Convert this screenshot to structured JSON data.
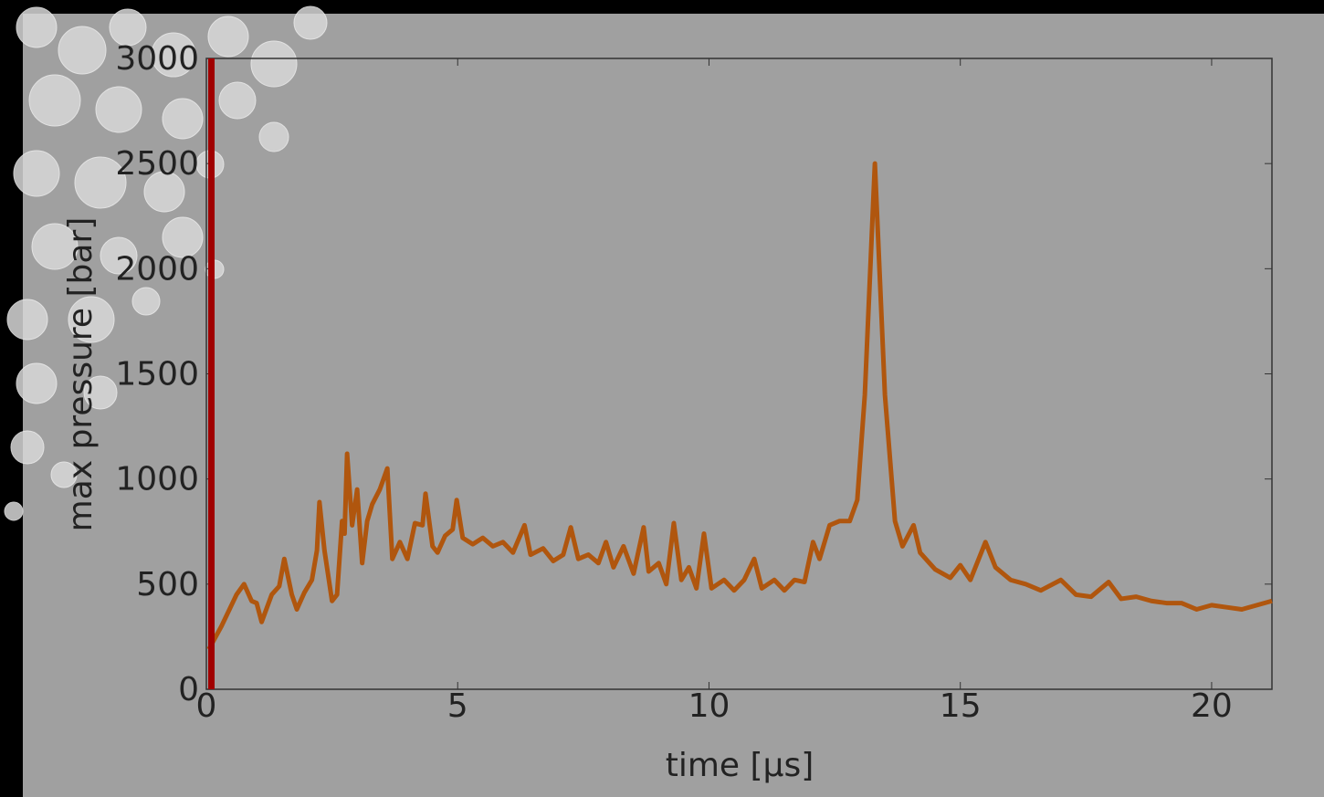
{
  "chart_data": {
    "type": "line",
    "xlabel": "time [μs]",
    "ylabel": "max pressure [bar]",
    "xlim": [
      0,
      21.2
    ],
    "ylim": [
      0,
      3000
    ],
    "xticks": [
      0,
      5,
      10,
      15,
      20
    ],
    "yticks": [
      0,
      500,
      1000,
      1500,
      2000,
      2500,
      3000
    ],
    "series": [
      {
        "color": "#b0560e",
        "x": [
          0.05,
          0.3,
          0.6,
          0.75,
          0.9,
          1.0,
          1.1,
          1.3,
          1.45,
          1.55,
          1.7,
          1.8,
          1.95,
          2.1,
          2.2,
          2.25,
          2.35,
          2.5,
          2.6,
          2.7,
          2.75,
          2.8,
          2.9,
          3.0,
          3.1,
          3.2,
          3.3,
          3.45,
          3.6,
          3.7,
          3.85,
          4.0,
          4.15,
          4.3,
          4.36,
          4.5,
          4.6,
          4.75,
          4.9,
          4.98,
          5.1,
          5.3,
          5.5,
          5.7,
          5.9,
          6.1,
          6.33,
          6.45,
          6.7,
          6.9,
          7.1,
          7.25,
          7.4,
          7.6,
          7.8,
          7.95,
          8.1,
          8.3,
          8.5,
          8.7,
          8.8,
          9.0,
          9.15,
          9.3,
          9.45,
          9.6,
          9.75,
          9.9,
          10.05,
          10.3,
          10.5,
          10.7,
          10.9,
          11.05,
          11.3,
          11.5,
          11.7,
          11.9,
          12.07,
          12.2,
          12.4,
          12.6,
          12.8,
          12.95,
          13.1,
          13.3,
          13.5,
          13.7,
          13.85,
          14.07,
          14.2,
          14.5,
          14.8,
          15.0,
          15.2,
          15.5,
          15.7,
          16.0,
          16.3,
          16.6,
          17.0,
          17.3,
          17.6,
          17.95,
          18.2,
          18.5,
          18.8,
          19.1,
          19.4,
          19.7,
          20.0,
          20.3,
          20.6,
          20.9,
          21.2
        ],
        "values": [
          190,
          300,
          450,
          500,
          420,
          410,
          320,
          450,
          490,
          620,
          450,
          380,
          460,
          520,
          660,
          890,
          660,
          420,
          450,
          800,
          740,
          1120,
          780,
          950,
          600,
          800,
          880,
          950,
          1050,
          620,
          700,
          620,
          790,
          780,
          930,
          680,
          650,
          730,
          760,
          900,
          720,
          690,
          720,
          680,
          700,
          650,
          780,
          640,
          670,
          610,
          640,
          770,
          620,
          640,
          600,
          700,
          580,
          680,
          550,
          770,
          560,
          600,
          500,
          790,
          520,
          580,
          480,
          740,
          480,
          520,
          470,
          520,
          620,
          480,
          520,
          470,
          520,
          510,
          700,
          620,
          780,
          800,
          800,
          900,
          1400,
          2500,
          1400,
          800,
          680,
          780,
          650,
          570,
          530,
          590,
          520,
          700,
          580,
          520,
          500,
          470,
          520,
          450,
          440,
          510,
          430,
          440,
          420,
          410,
          410,
          380,
          400,
          390,
          380,
          400,
          420
        ]
      },
      {
        "color": "#a00000",
        "x": [
          0.1,
          0.1
        ],
        "values": [
          0,
          3000
        ]
      }
    ]
  }
}
